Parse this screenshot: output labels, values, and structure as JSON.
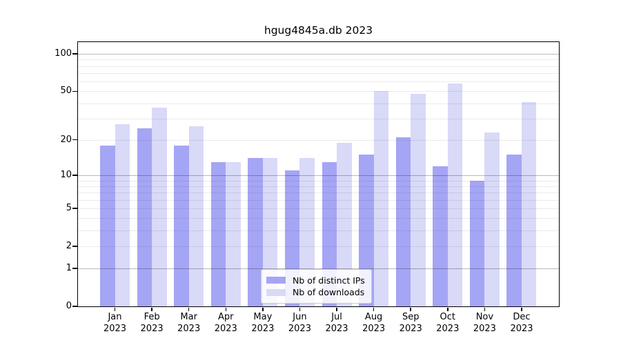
{
  "title": "hgug4845a.db 2023",
  "chart_data": {
    "type": "bar",
    "title": "hgug4845a.db 2023",
    "categories": [
      "Jan",
      "Feb",
      "Mar",
      "Apr",
      "May",
      "Jun",
      "Jul",
      "Aug",
      "Sep",
      "Oct",
      "Nov",
      "Dec"
    ],
    "year_label": "2023",
    "series": [
      {
        "name": "Nb of distinct IPs",
        "color": "#a5a5f5",
        "values": [
          18,
          25,
          18,
          13,
          14,
          11,
          13,
          15,
          21,
          12,
          9,
          15
        ]
      },
      {
        "name": "Nb of downloads",
        "color": "#d9d9f8",
        "values": [
          27,
          37,
          26,
          13,
          14,
          14,
          19,
          50,
          48,
          58,
          23,
          41
        ]
      }
    ],
    "yscale": "log1p",
    "ylim": [
      0,
      124
    ],
    "y_ticks": [
      0,
      1,
      2,
      5,
      10,
      20,
      50,
      100
    ],
    "major_gridlines": [
      1,
      10,
      100
    ],
    "minor_gridlines": [
      2,
      3,
      4,
      5,
      6,
      7,
      8,
      9,
      20,
      30,
      40,
      50,
      60,
      70,
      80,
      90
    ],
    "grid": true,
    "legend_position": "lower center",
    "xlabel": "",
    "ylabel": ""
  }
}
